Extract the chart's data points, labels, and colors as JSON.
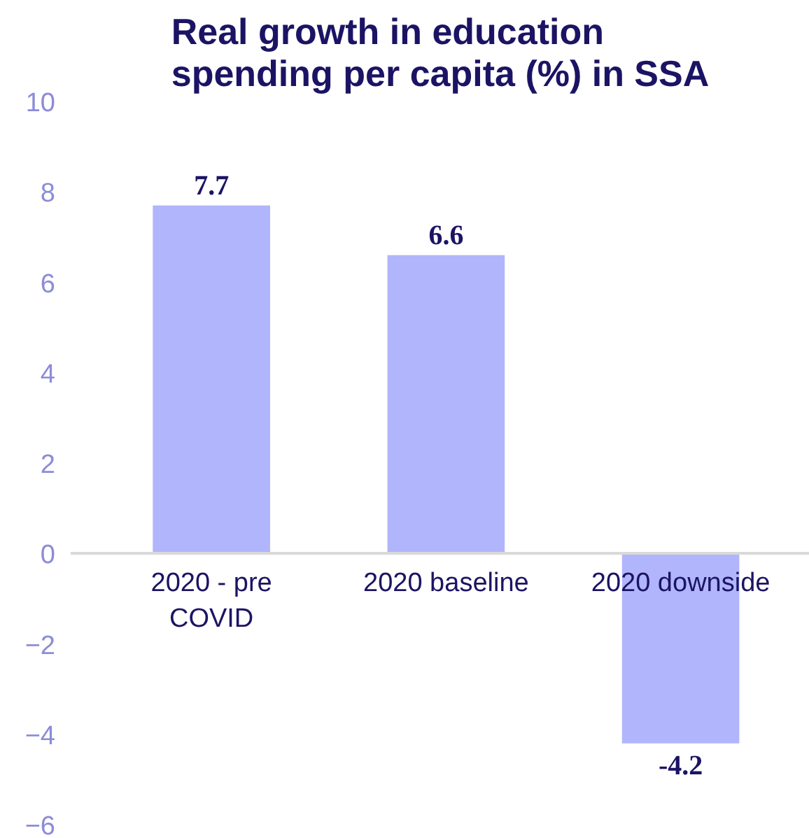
{
  "chart_data": {
    "type": "bar",
    "title": "Real growth in education spending per capita (%) in SSA",
    "categories": [
      "2020 - pre COVID",
      "2020 baseline",
      "2020 downside"
    ],
    "values": [
      7.7,
      6.6,
      -4.2
    ],
    "color": "#b1b5fb",
    "ylim": [
      -6,
      10
    ],
    "yticks": [
      -6,
      -4,
      -2,
      0,
      2,
      4,
      6,
      8,
      10
    ],
    "grid": false,
    "data_labels": true
  }
}
